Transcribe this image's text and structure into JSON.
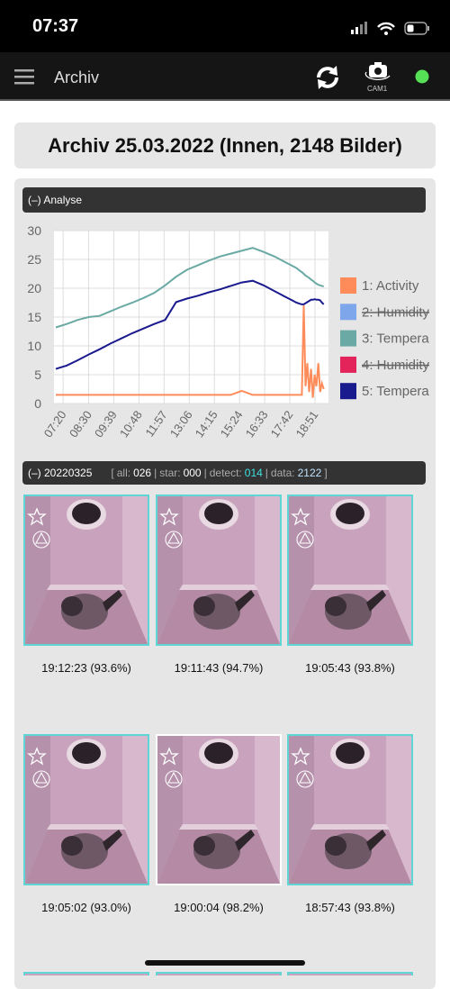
{
  "status": {
    "time": "07:37"
  },
  "nav": {
    "title": "Archiv",
    "camera": "CAM1"
  },
  "heading": "Archiv 25.03.2022 (Innen, 2148 Bilder)",
  "analyse": {
    "toggle": "(–) Analyse"
  },
  "chart_data": {
    "type": "line",
    "x": [
      420,
      450,
      480,
      510,
      540,
      570,
      600,
      630,
      660,
      690,
      720,
      750,
      780,
      810,
      840,
      870,
      900,
      930,
      960,
      990,
      1020,
      1050,
      1065,
      1080,
      1090,
      1095,
      1100,
      1105,
      1110,
      1115,
      1120,
      1125,
      1130,
      1135,
      1140,
      1145,
      1150,
      1155
    ],
    "xlim": [
      415,
      1168
    ],
    "xticks": [
      {
        "value": 440,
        "label": "07:20"
      },
      {
        "value": 510,
        "label": "08:30"
      },
      {
        "value": 579,
        "label": "09:39"
      },
      {
        "value": 648,
        "label": "10:48"
      },
      {
        "value": 717,
        "label": "11:57"
      },
      {
        "value": 786,
        "label": "13:06"
      },
      {
        "value": 855,
        "label": "14:15"
      },
      {
        "value": 924,
        "label": "15:24"
      },
      {
        "value": 993,
        "label": "16:33"
      },
      {
        "value": 1062,
        "label": "17:42"
      },
      {
        "value": 1131,
        "label": "18:51"
      }
    ],
    "ylim": [
      0,
      30
    ],
    "yticks": [
      0,
      5,
      10,
      15,
      20,
      25,
      30
    ],
    "grid": true,
    "legend": "right",
    "series": [
      {
        "name": "1: Activity",
        "color": "#fd8c5a",
        "values": [
          1.5,
          1.5,
          1.5,
          1.5,
          1.5,
          1.5,
          1.5,
          1.5,
          1.5,
          1.5,
          1.5,
          1.5,
          1.5,
          1.5,
          1.5,
          1.5,
          1.5,
          2.2,
          1.5,
          1.5,
          1.5,
          1.5,
          1.5,
          1.5,
          1.5,
          1.5,
          17,
          3,
          7,
          2,
          6,
          1,
          5,
          3,
          7,
          2,
          3.5,
          2.5
        ]
      },
      {
        "name": "2: Humidity",
        "color": "#7ea6ea",
        "hidden": true
      },
      {
        "name": "3: Tempera",
        "color": "#6aa9a4",
        "values": [
          13.2,
          13.8,
          14.5,
          15,
          15.2,
          16,
          16.8,
          17.5,
          18.3,
          19.2,
          20.5,
          22,
          23.2,
          24,
          24.8,
          25.5,
          26,
          26.5,
          27,
          26.3,
          25.5,
          24.5,
          24,
          23.5,
          23,
          22.8,
          22.5,
          22.2,
          22,
          21.8,
          21.5,
          21.3,
          21,
          20.8,
          20.6,
          20.5,
          20.4,
          20.3
        ]
      },
      {
        "name": "4: Humidity",
        "color": "#e3245a",
        "hidden": true
      },
      {
        "name": "5: Tempera",
        "color": "#1a1a8f",
        "values": [
          6,
          6.6,
          7.5,
          8.5,
          9.4,
          10.4,
          11.3,
          12.2,
          13,
          13.8,
          14.5,
          17.6,
          18.2,
          18.7,
          19.3,
          19.8,
          20.4,
          21,
          21.3,
          20.5,
          19.5,
          18.5,
          18,
          17.5,
          17.3,
          17.2,
          17.2,
          17.4,
          17.6,
          17.8,
          18,
          18,
          18.1,
          18,
          18,
          17.9,
          17.5,
          17.2
        ]
      }
    ]
  },
  "day": {
    "toggle": "(–) 20220325",
    "open": "[",
    "close": "]",
    "separator": "|",
    "stats": [
      {
        "label": "all:",
        "value": "026",
        "color": "#ffffff"
      },
      {
        "label": "star:",
        "value": "000",
        "color": "#ffffff"
      },
      {
        "label": "detect:",
        "value": "014",
        "color": "#3fe0e0"
      },
      {
        "label": "data:",
        "value": "2122",
        "color": "#bfe3ff"
      }
    ]
  },
  "images": [
    {
      "caption": "19:12:23 (93.6%)"
    },
    {
      "caption": "19:11:43 (94.7%)"
    },
    {
      "caption": "19:05:43 (93.8%)"
    },
    {
      "caption": "19:05:02 (93.0%)"
    },
    {
      "caption": "19:00:04 (98.2%)",
      "selected": true
    },
    {
      "caption": "18:57:43 (93.8%)"
    }
  ]
}
